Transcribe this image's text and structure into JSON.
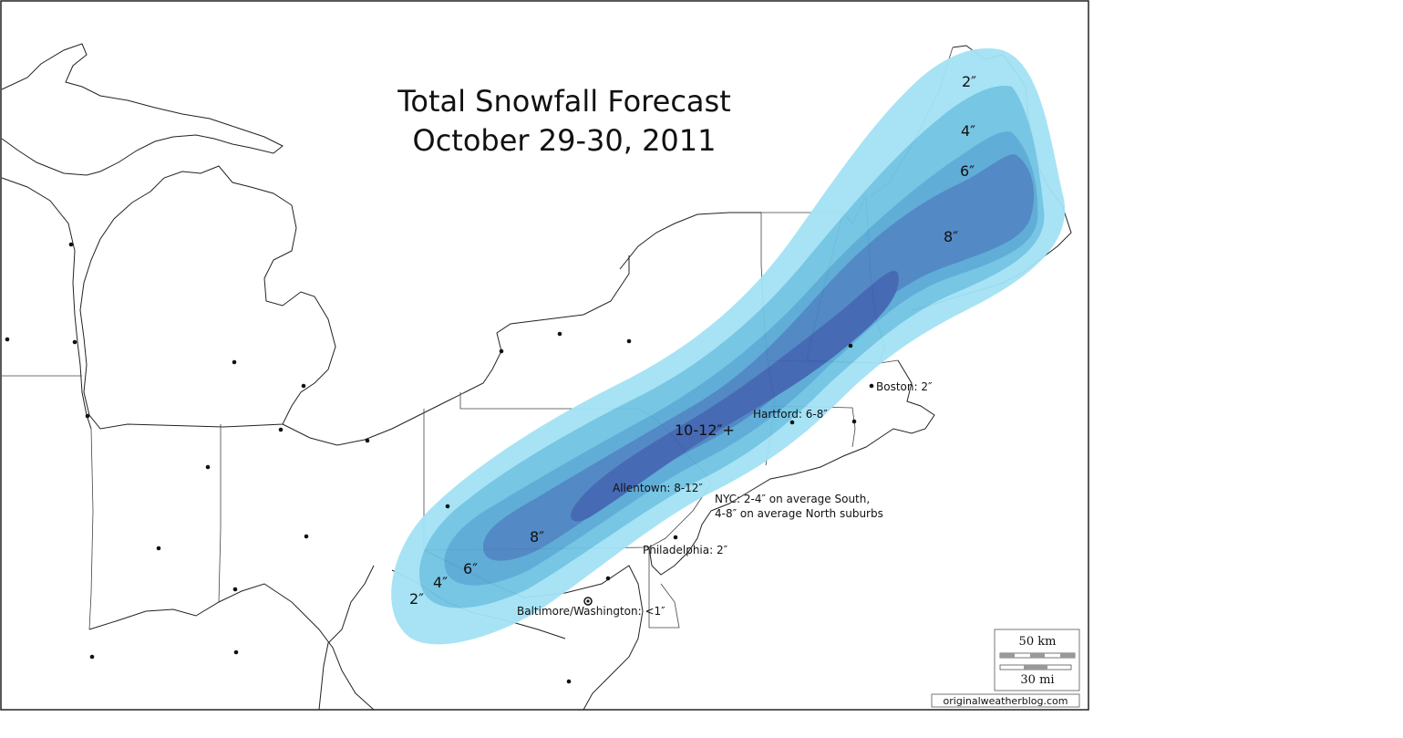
{
  "map": {
    "title_line1": "Total Snowfall Forecast",
    "title_line2": "October 29-30, 2011",
    "colors": {
      "band_2": "#a3e2f5",
      "band_4": "#6fc3e3",
      "band_6": "#58a9d6",
      "band_8": "#4a83c2",
      "band_10": "#3e63b0"
    },
    "contour_labels": {
      "ne_2": "2″",
      "ne_4": "4″",
      "ne_6": "6″",
      "ne_8": "8″",
      "sw_2": "2″",
      "sw_4": "4″",
      "sw_6": "6″",
      "sw_8": "8″",
      "center": "10-12″+"
    },
    "cities": {
      "boston": "Boston:  2″",
      "hartford": "Hartford:  6-8″",
      "allentown": "Allentown:  8-12″",
      "nyc_line1": "NYC:  2-4″ on average South,",
      "nyc_line2": "4-8″ on average North suburbs",
      "philadelphia": "Philadelphia:  2″",
      "baltimore": "Baltimore/Washington:  <1″"
    },
    "scale": {
      "km": "50 km",
      "mi": "30 mi"
    },
    "credit": "originalweatherblog.com"
  }
}
